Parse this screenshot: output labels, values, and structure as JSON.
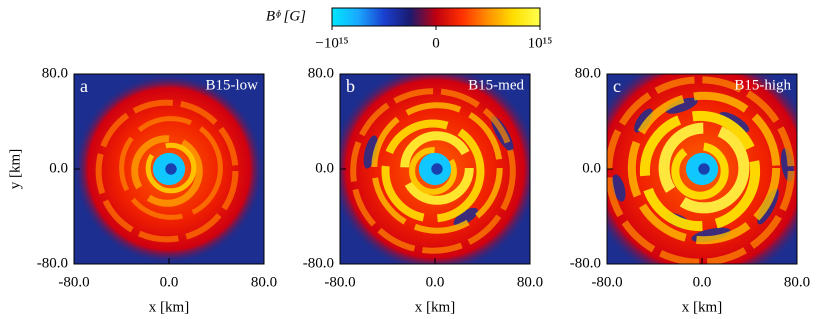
{
  "colorbar": {
    "label": "Bᶲ [G]",
    "lim": [
      -1000000000000000.0,
      1000000000000000.0
    ],
    "ticks": [
      {
        "value": -1000000000000000.0,
        "label": "−10¹⁵"
      },
      0,
      {
        "value": 1000000000000000.0,
        "label": "10¹⁵"
      }
    ],
    "colors": [
      "#00e8ff",
      "#1aa8ff",
      "#1a40d0",
      "#1a1a70",
      "#c00010",
      "#ff3000",
      "#ff9000",
      "#ffe000",
      "#ffff50"
    ]
  },
  "chart_data": [
    {
      "type": "heatmap",
      "panel": "a",
      "title": "B15-low",
      "xlabel": "x [km]",
      "ylabel": "y [km]",
      "xlim": [
        -80,
        80
      ],
      "ylim": [
        -80,
        80
      ],
      "xticks": [
        {
          "value": -80,
          "label": "-80.0"
        },
        {
          "value": 0,
          "label": "0.0"
        },
        {
          "value": 80,
          "label": "80.0"
        }
      ],
      "yticks": [
        {
          "value": -80,
          "label": "-80.0"
        },
        {
          "value": 0,
          "label": "0.0"
        },
        {
          "value": 80,
          "label": "80.0"
        }
      ]
    },
    {
      "type": "heatmap",
      "panel": "b",
      "title": "B15-med",
      "xlabel": "x [km]",
      "xlim": [
        -80,
        80
      ],
      "ylim": [
        -80,
        80
      ],
      "xticks": [
        {
          "value": -80,
          "label": "-80.0"
        },
        {
          "value": 0,
          "label": "0.0"
        },
        {
          "value": 80,
          "label": "80.0"
        }
      ],
      "yticks": [
        {
          "value": -80,
          "label": "-80.0"
        },
        {
          "value": 0,
          "label": "0.0"
        },
        {
          "value": 80,
          "label": "80.0"
        }
      ]
    },
    {
      "type": "heatmap",
      "panel": "c",
      "title": "B15-high",
      "xlabel": "x [km]",
      "xlim": [
        -80,
        80
      ],
      "ylim": [
        -80,
        80
      ],
      "xticks": [
        {
          "value": -80,
          "label": "-80.0"
        },
        {
          "value": 0,
          "label": "0.0"
        },
        {
          "value": 80,
          "label": "80.0"
        }
      ],
      "yticks": [
        {
          "value": -80,
          "label": "-80.0"
        },
        {
          "value": 0,
          "label": "0.0"
        },
        {
          "value": 80,
          "label": "80.0"
        }
      ]
    }
  ]
}
